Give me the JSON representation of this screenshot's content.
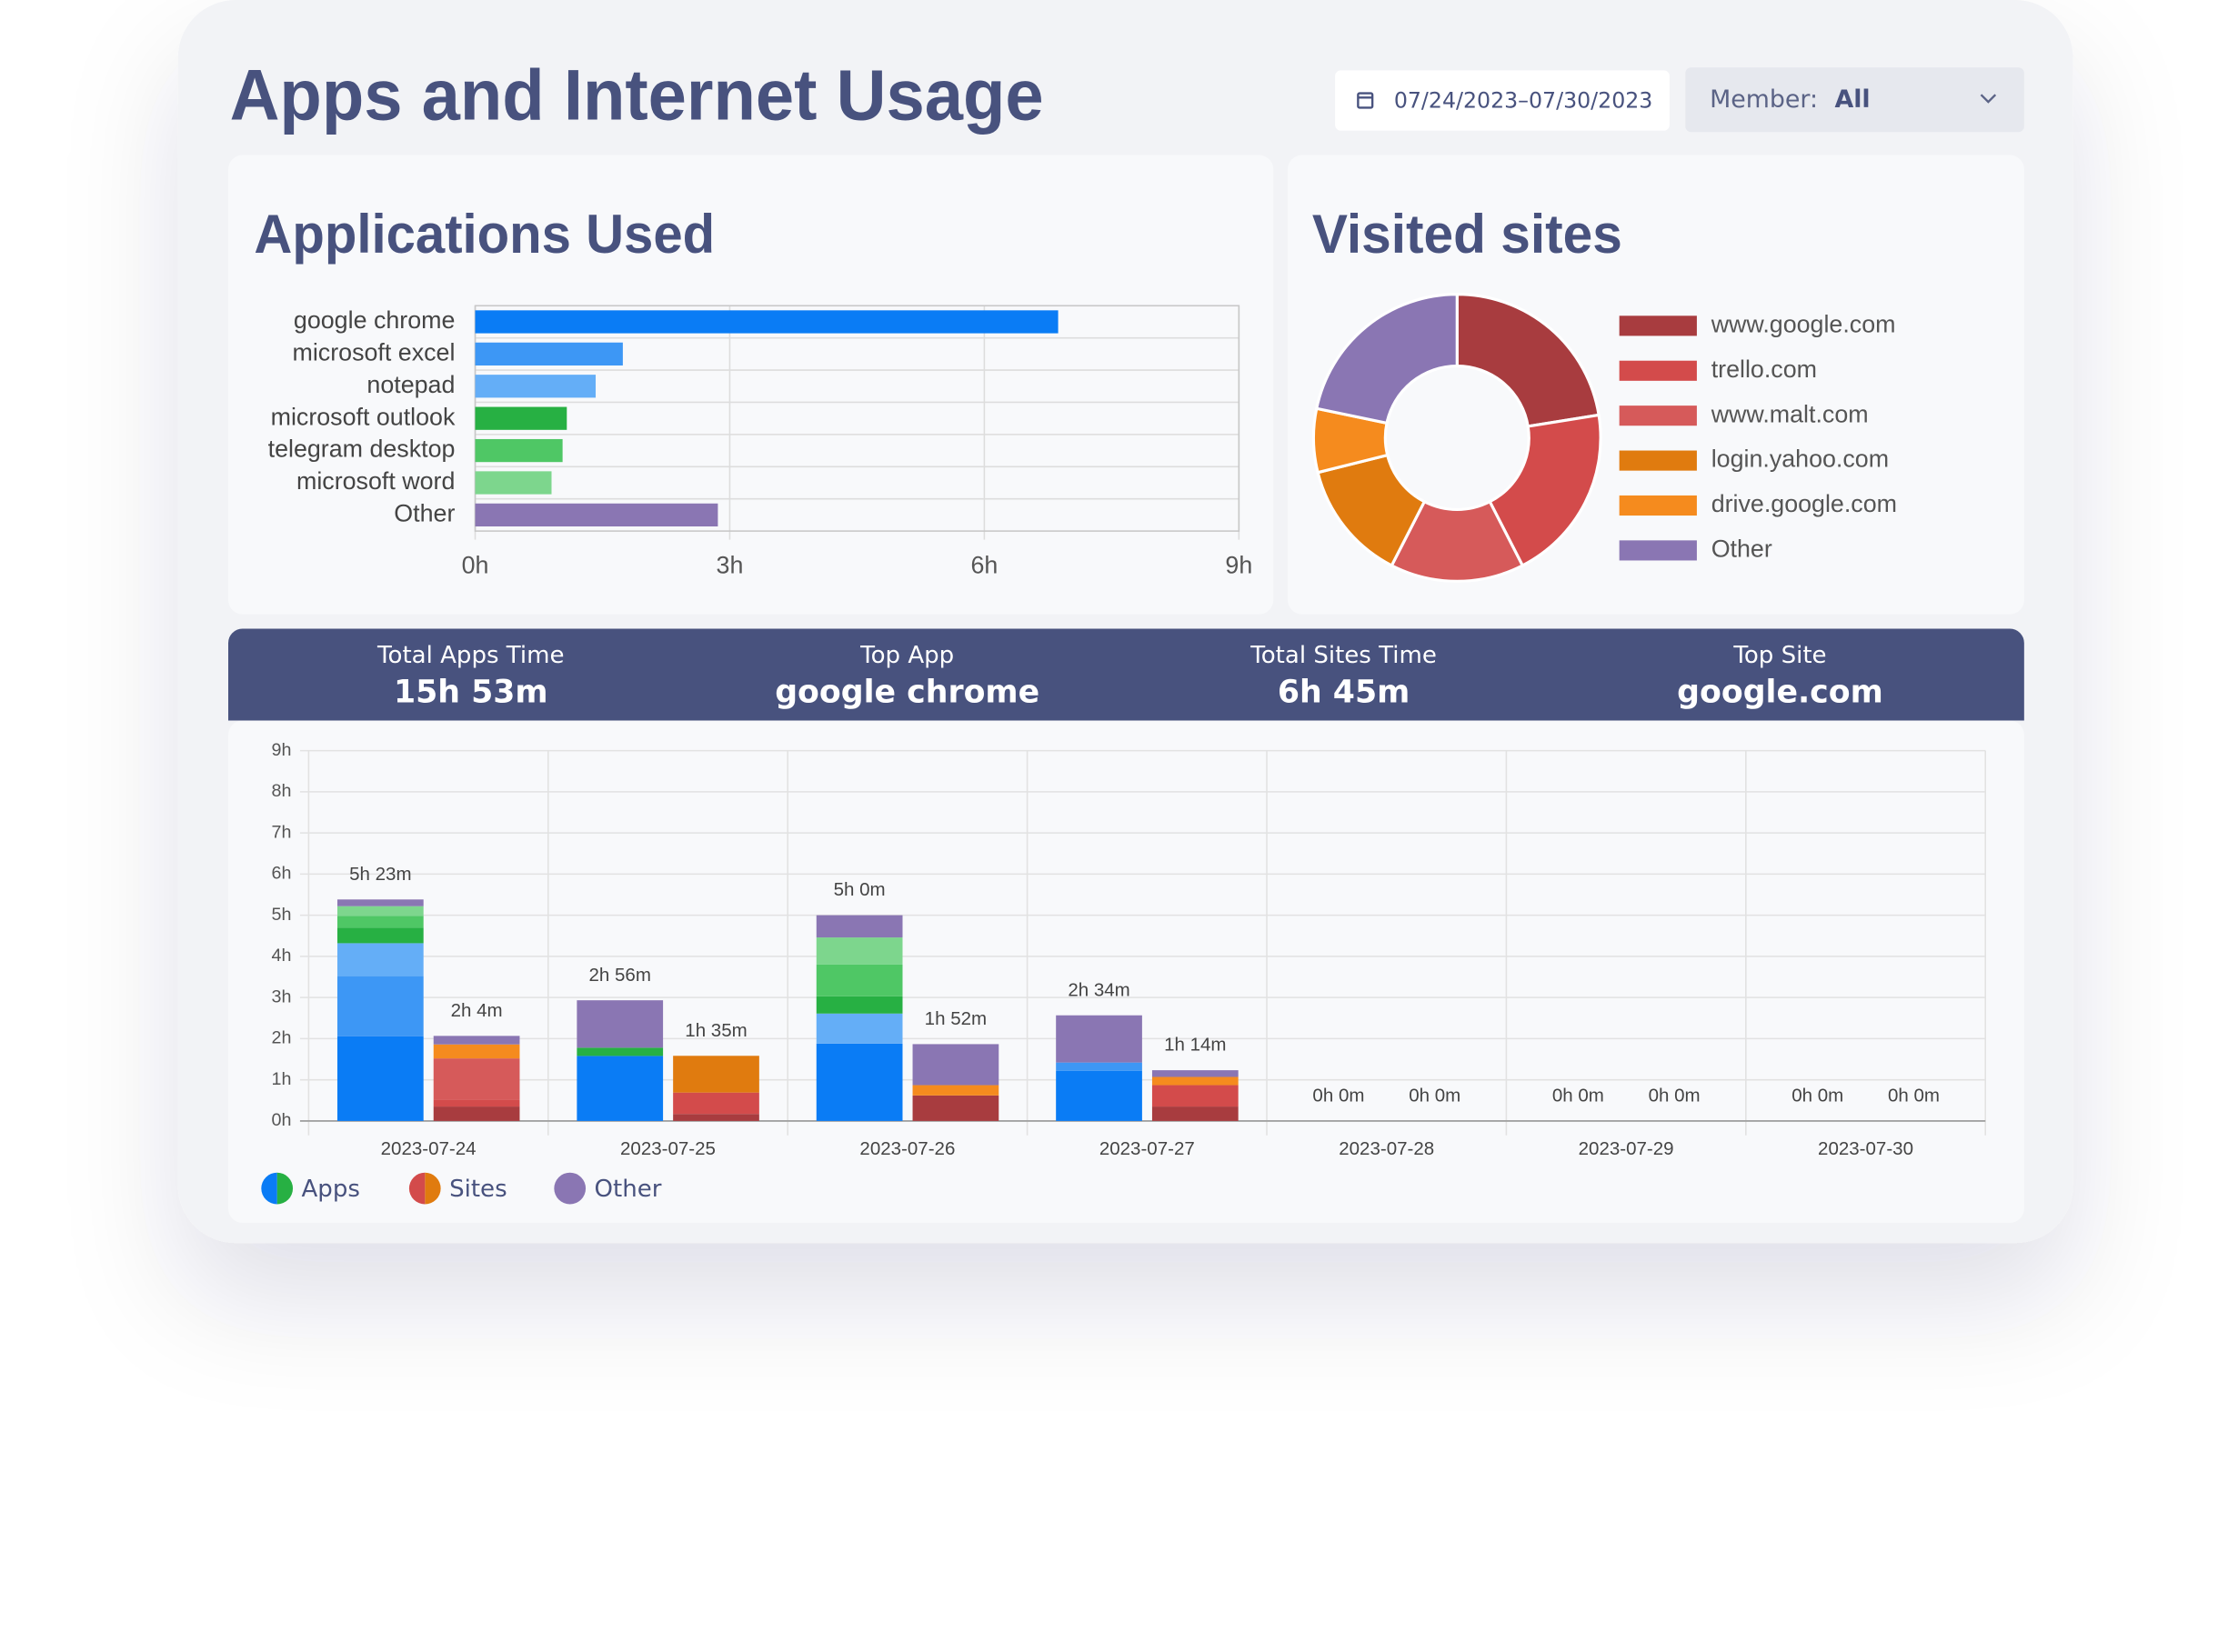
{
  "header": {
    "title": "Apps and Internet Usage",
    "date_range": "07/24/2023–07/30/2023",
    "member_label": "Member:",
    "member_value": "All"
  },
  "summary": [
    {
      "label": "Total Apps Time",
      "value": "15h 53m"
    },
    {
      "label": "Top App",
      "value": "google chrome"
    },
    {
      "label": "Total Sites Time",
      "value": "6h 45m"
    },
    {
      "label": "Top Site",
      "value": "google.com"
    }
  ],
  "chart_data": [
    {
      "type": "bar",
      "orientation": "horizontal",
      "title": "Applications Used",
      "categories": [
        "google chrome",
        "microsoft excel",
        "notepad",
        "microsoft outlook",
        "telegram desktop",
        "microsoft word",
        "Other"
      ],
      "values": [
        6.87,
        1.74,
        1.42,
        1.08,
        1.03,
        0.9,
        2.86
      ],
      "colors": [
        "#0a7cf5",
        "#3d97f5",
        "#64aef7",
        "#27b043",
        "#4fc765",
        "#7dd68d",
        "#8a76b3"
      ],
      "xlim": [
        0,
        9
      ],
      "xticks": [
        {
          "value": 0,
          "label": "0h"
        },
        {
          "value": 3,
          "label": "3h"
        },
        {
          "value": 6,
          "label": "6h"
        },
        {
          "value": 9,
          "label": "9h"
        }
      ],
      "grid": true
    },
    {
      "type": "pie",
      "hole": 0.5,
      "title": "Visited sites",
      "categories": [
        "www.google.com",
        "trello.com",
        "www.malt.com",
        "login.yahoo.com",
        "drive.google.com",
        "Other"
      ],
      "values": [
        91,
        81,
        61,
        55,
        29,
        88
      ],
      "colors": [
        "#a83c3f",
        "#d34b4b",
        "#d65a5a",
        "#e07b0f",
        "#f58b1e",
        "#8a76b3"
      ],
      "legend": "right"
    },
    {
      "type": "stacked_bar",
      "categories": [
        "2023-07-24",
        "2023-07-25",
        "2023-07-26",
        "2023-07-27",
        "2023-07-28",
        "2023-07-29",
        "2023-07-30"
      ],
      "ylim": [
        0,
        9
      ],
      "yticks": [
        {
          "value": 0,
          "label": "0h"
        },
        {
          "value": 1,
          "label": "1h"
        },
        {
          "value": 2,
          "label": "2h"
        },
        {
          "value": 3,
          "label": "3h"
        },
        {
          "value": 4,
          "label": "4h"
        },
        {
          "value": 5,
          "label": "5h"
        },
        {
          "value": 6,
          "label": "6h"
        },
        {
          "value": 7,
          "label": "7h"
        },
        {
          "value": 8,
          "label": "8h"
        },
        {
          "value": 9,
          "label": "9h"
        }
      ],
      "grid": true,
      "stacks": [
        {
          "name": "Apps",
          "legend_colors": [
            "#0a7cf5",
            "#27b043"
          ],
          "totals": [
            5.383,
            2.933,
            5.0,
            2.567,
            0,
            0,
            0
          ],
          "total_labels": [
            "5h 23m",
            "2h 56m",
            "5h 0m",
            "2h 34m",
            "0h 0m",
            "0h 0m",
            "0h 0m"
          ],
          "series": [
            {
              "color": "#0a7cf5",
              "values": [
                2.06,
                1.58,
                1.88,
                1.22,
                0,
                0,
                0
              ]
            },
            {
              "color": "#3d97f5",
              "values": [
                1.46,
                0,
                0,
                0.2,
                0,
                0,
                0
              ]
            },
            {
              "color": "#64aef7",
              "values": [
                0.8,
                0,
                0.73,
                0,
                0,
                0,
                0
              ]
            },
            {
              "color": "#27b043",
              "values": [
                0.38,
                0.2,
                0.42,
                0,
                0,
                0,
                0
              ]
            },
            {
              "color": "#4fc765",
              "values": [
                0.28,
                0,
                0.77,
                0,
                0,
                0,
                0
              ]
            },
            {
              "color": "#7dd68d",
              "values": [
                0.24,
                0,
                0.66,
                0,
                0,
                0,
                0
              ]
            },
            {
              "color": "#8a76b3",
              "values": [
                0.163,
                1.153,
                0.54,
                1.147,
                0,
                0,
                0
              ]
            }
          ]
        },
        {
          "name": "Sites",
          "legend_colors": [
            "#d34b4b",
            "#e07b0f"
          ],
          "totals": [
            2.067,
            1.583,
            1.867,
            1.233,
            0,
            0,
            0
          ],
          "total_labels": [
            "2h 4m",
            "1h 35m",
            "1h 52m",
            "1h 14m",
            "0h 0m",
            "0h 0m",
            "0h 0m"
          ],
          "series": [
            {
              "color": "#a83c3f",
              "values": [
                0.35,
                0.17,
                0.62,
                0.35,
                0,
                0,
                0
              ]
            },
            {
              "color": "#d34b4b",
              "values": [
                0.17,
                0.52,
                0,
                0.52,
                0,
                0,
                0
              ]
            },
            {
              "color": "#d65a5a",
              "values": [
                1.0,
                0,
                0,
                0,
                0,
                0,
                0
              ]
            },
            {
              "color": "#e07b0f",
              "values": [
                0,
                0.893,
                0,
                0,
                0,
                0,
                0
              ]
            },
            {
              "color": "#f58b1e",
              "values": [
                0.34,
                0,
                0.25,
                0.2,
                0,
                0,
                0
              ]
            },
            {
              "color": "#8a76b3",
              "values": [
                0.207,
                0,
                0.997,
                0.163,
                0,
                0,
                0
              ]
            }
          ]
        }
      ],
      "legend_other": {
        "name": "Other",
        "color": "#8a76b3"
      }
    }
  ]
}
